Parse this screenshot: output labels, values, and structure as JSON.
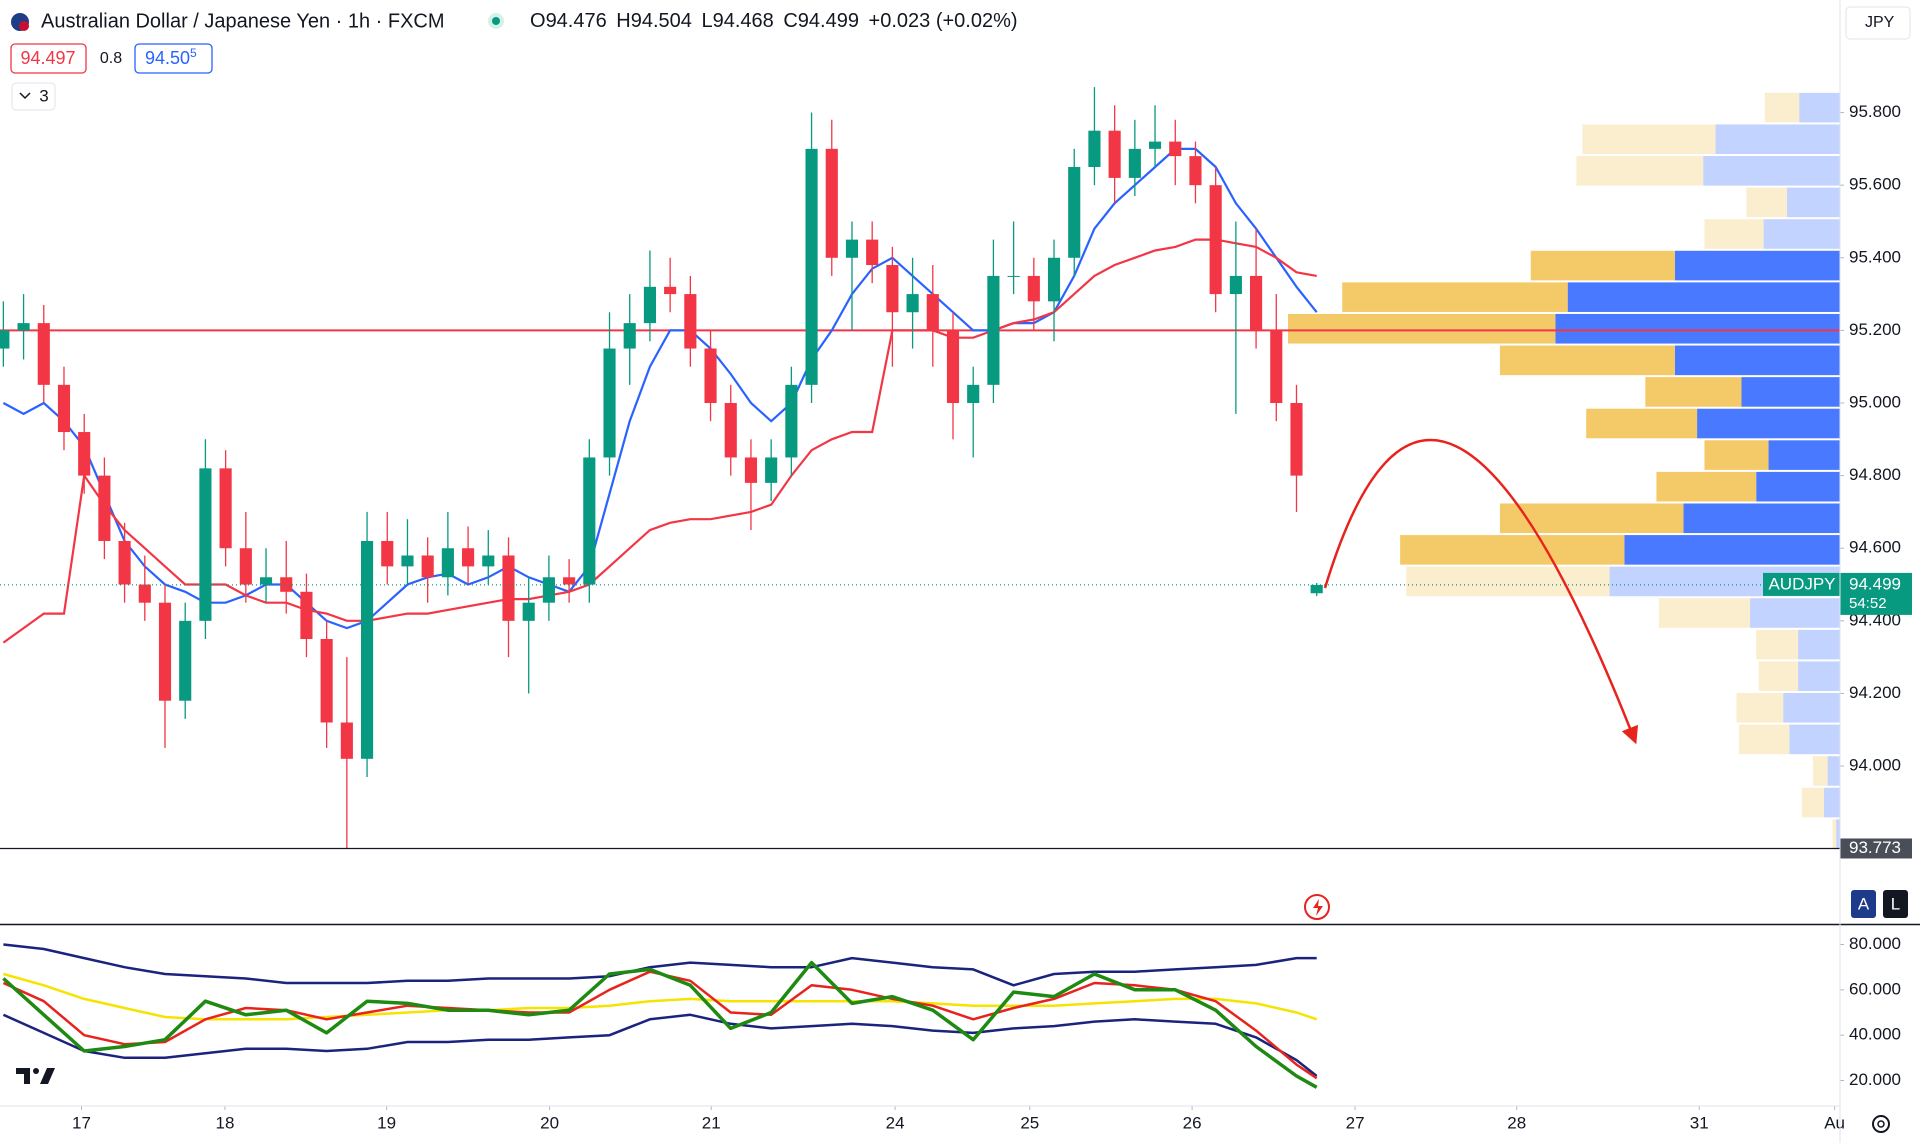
{
  "header": {
    "ohlc": [
      {
        "label": "O",
        "value": "94.476"
      },
      {
        "label": "H",
        "value": "94.504"
      },
      {
        "label": "L",
        "value": "94.468"
      },
      {
        "label": "C",
        "value": "94.499"
      }
    ],
    "change": "+0.023 (+0.02%)",
    "bid": "94.497",
    "spread": "0.8",
    "ask": "94.50",
    "ask_pip": "5",
    "indicators": "3",
    "currency": "JPY",
    "auto": "A",
    "log": "L"
  },
  "chart_data": [
    {
      "type": "candlestick",
      "title": "Australian Dollar / Japanese Yen · 1h · FXCM",
      "x": [
        0,
        3,
        6,
        9,
        12,
        15,
        18,
        21,
        24,
        27,
        30,
        33,
        36,
        39,
        42,
        45,
        48,
        51,
        54,
        57,
        60,
        63,
        66,
        69,
        72,
        75,
        78,
        81,
        84,
        87,
        90,
        93,
        96,
        99,
        102,
        105,
        108,
        111,
        114,
        117,
        120,
        123,
        126,
        129,
        132,
        135,
        138,
        141,
        144,
        147,
        150,
        153,
        156,
        159,
        162,
        165,
        168,
        171,
        174,
        177,
        180,
        183,
        186,
        189,
        192,
        195
      ],
      "open": [
        95.15,
        95.2,
        95.22,
        95.05,
        94.92,
        94.8,
        94.62,
        94.5,
        94.45,
        94.18,
        94.4,
        94.82,
        94.6,
        94.5,
        94.52,
        94.48,
        94.35,
        94.12,
        94.02,
        94.62,
        94.55,
        94.58,
        94.52,
        94.6,
        94.55,
        94.58,
        94.4,
        94.45,
        94.52,
        94.5,
        94.85,
        95.15,
        95.22,
        95.32,
        95.3,
        95.15,
        95.0,
        94.85,
        94.78,
        94.85,
        95.05,
        95.7,
        95.4,
        95.45,
        95.38,
        95.25,
        95.3,
        95.2,
        95.0,
        95.05,
        95.35,
        95.35,
        95.28,
        95.4,
        95.65,
        95.75,
        95.62,
        95.7,
        95.72,
        95.68,
        95.6,
        95.3,
        95.35,
        95.2,
        95.0,
        94.476
      ],
      "high": [
        95.28,
        95.3,
        95.27,
        95.1,
        94.97,
        94.85,
        94.67,
        94.58,
        94.5,
        94.45,
        94.9,
        94.87,
        94.7,
        94.6,
        94.62,
        94.53,
        94.4,
        94.3,
        94.7,
        94.7,
        94.68,
        94.63,
        94.7,
        94.66,
        94.65,
        94.63,
        94.52,
        94.58,
        94.57,
        94.9,
        95.25,
        95.3,
        95.42,
        95.4,
        95.35,
        95.2,
        95.05,
        94.9,
        94.9,
        95.1,
        95.8,
        95.78,
        95.5,
        95.5,
        95.43,
        95.4,
        95.38,
        95.25,
        95.1,
        95.45,
        95.5,
        95.4,
        95.45,
        95.7,
        95.87,
        95.82,
        95.78,
        95.82,
        95.78,
        95.72,
        95.65,
        95.5,
        95.48,
        95.3,
        95.05,
        94.504
      ],
      "low": [
        95.1,
        95.12,
        95.0,
        94.87,
        94.75,
        94.57,
        94.45,
        94.4,
        94.05,
        94.13,
        94.35,
        94.55,
        94.45,
        94.45,
        94.42,
        94.3,
        94.05,
        93.773,
        93.97,
        94.5,
        94.5,
        94.45,
        94.47,
        94.5,
        94.5,
        94.3,
        94.2,
        94.4,
        94.45,
        94.45,
        94.8,
        95.05,
        95.17,
        95.25,
        95.1,
        94.95,
        94.8,
        94.65,
        94.73,
        94.8,
        95.0,
        95.35,
        95.2,
        95.33,
        95.1,
        95.15,
        95.1,
        94.9,
        94.85,
        95.0,
        95.3,
        95.2,
        95.17,
        95.35,
        95.6,
        95.55,
        95.57,
        95.65,
        95.6,
        95.55,
        95.25,
        94.97,
        95.15,
        94.95,
        94.7,
        94.468
      ],
      "close": [
        95.2,
        95.22,
        95.05,
        94.92,
        94.8,
        94.62,
        94.5,
        94.45,
        94.18,
        94.4,
        94.82,
        94.6,
        94.5,
        94.52,
        94.48,
        94.35,
        94.12,
        94.02,
        94.62,
        94.55,
        94.58,
        94.52,
        94.6,
        94.55,
        94.58,
        94.4,
        94.45,
        94.52,
        94.5,
        94.85,
        95.15,
        95.22,
        95.32,
        95.3,
        95.15,
        95.0,
        94.85,
        94.78,
        94.85,
        95.05,
        95.7,
        95.4,
        95.45,
        95.38,
        95.25,
        95.3,
        95.2,
        95.0,
        95.05,
        95.35,
        95.35,
        95.28,
        95.4,
        95.65,
        95.75,
        95.62,
        95.7,
        95.72,
        95.68,
        95.6,
        95.3,
        95.35,
        95.2,
        95.0,
        94.8,
        94.499
      ],
      "up_color": "#089981",
      "down_color": "#f23645",
      "overlays": [
        {
          "color": "#2962ff",
          "values": [
            95.0,
            94.97,
            95.0,
            94.95,
            94.88,
            94.75,
            94.62,
            94.55,
            94.5,
            94.48,
            94.45,
            94.45,
            94.47,
            94.5,
            94.5,
            94.45,
            94.4,
            94.38,
            94.4,
            94.45,
            94.5,
            94.52,
            94.53,
            94.5,
            94.52,
            94.55,
            94.52,
            94.5,
            94.48,
            94.55,
            94.75,
            94.95,
            95.1,
            95.2,
            95.2,
            95.15,
            95.08,
            95.0,
            94.95,
            95.0,
            95.12,
            95.2,
            95.3,
            95.37,
            95.4,
            95.35,
            95.3,
            95.25,
            95.2,
            95.2,
            95.22,
            95.22,
            95.25,
            95.35,
            95.48,
            95.55,
            95.6,
            95.65,
            95.7,
            95.7,
            95.65,
            95.55,
            95.48,
            95.4,
            95.32,
            95.25
          ]
        },
        {
          "color": "#f23645",
          "values": [
            94.34,
            94.38,
            94.42,
            94.42,
            94.8,
            94.72,
            94.65,
            94.6,
            94.55,
            94.5,
            94.5,
            94.5,
            94.47,
            94.45,
            94.45,
            94.43,
            94.42,
            94.4,
            94.4,
            94.41,
            94.42,
            94.42,
            94.43,
            94.44,
            94.45,
            94.46,
            94.46,
            94.47,
            94.48,
            94.5,
            94.55,
            94.6,
            94.65,
            94.67,
            94.68,
            94.68,
            94.69,
            94.7,
            94.72,
            94.8,
            94.87,
            94.9,
            94.92,
            94.92,
            95.2,
            95.2,
            95.2,
            95.18,
            95.18,
            95.2,
            95.22,
            95.23,
            95.25,
            95.3,
            95.35,
            95.38,
            95.4,
            95.42,
            95.43,
            95.45,
            95.45,
            95.44,
            95.43,
            95.4,
            95.36,
            95.35
          ]
        }
      ],
      "hline": {
        "value": 95.2,
        "color": "#f23645"
      },
      "low_line": 93.773,
      "last_price": {
        "symbol": "AUDJPY",
        "value": 94.499,
        "countdown": "54:52",
        "color": "#089981"
      },
      "profile": {
        "top": 95.857,
        "row_size": 0.087,
        "up_color": "#2962ff",
        "down_color": "#f2c14e",
        "up": [
          33,
          101,
          111,
          43,
          62,
          134,
          221,
          231,
          134,
          80,
          116,
          58,
          68,
          127,
          175,
          187,
          73,
          34,
          34,
          46,
          41,
          10,
          13,
          3
        ],
        "down": [
          28,
          108,
          103,
          33,
          48,
          117,
          183,
          217,
          142,
          78,
          90,
          52,
          81,
          149,
          182,
          165,
          74,
          34,
          32,
          38,
          41,
          12,
          18,
          3
        ],
        "value_area": [
          false,
          false,
          false,
          false,
          false,
          true,
          true,
          true,
          true,
          true,
          true,
          true,
          true,
          true,
          true,
          false,
          false,
          false,
          false,
          false,
          false,
          false,
          false,
          false
        ]
      },
      "xlim": [
        -0.5,
        272.7
      ],
      "ylim": [
        93.565,
        96.11
      ],
      "xticks": [
        {
          "value": 11.6,
          "label": "17"
        },
        {
          "value": 32.9,
          "label": "18"
        },
        {
          "value": 56.9,
          "label": "19"
        },
        {
          "value": 81.1,
          "label": "20"
        },
        {
          "value": 105.1,
          "label": "21"
        },
        {
          "value": 132.4,
          "label": "24"
        },
        {
          "value": 152.4,
          "label": "25"
        },
        {
          "value": 176.5,
          "label": "26"
        },
        {
          "value": 200.7,
          "label": "27"
        },
        {
          "value": 224.7,
          "label": "28"
        },
        {
          "value": 251.8,
          "label": "31"
        },
        {
          "value": 271.9,
          "label": "Au"
        }
      ],
      "yticks": [
        {
          "value": 94.0,
          "label": "94.000"
        },
        {
          "value": 94.2,
          "label": "94.200"
        },
        {
          "value": 94.4,
          "label": "94.400"
        },
        {
          "value": 94.6,
          "label": "94.600"
        },
        {
          "value": 94.8,
          "label": "94.800"
        },
        {
          "value": 95.0,
          "label": "95.000"
        },
        {
          "value": 95.2,
          "label": "95.200"
        },
        {
          "value": 95.4,
          "label": "95.400"
        },
        {
          "value": 95.6,
          "label": "95.600"
        },
        {
          "value": 95.8,
          "label": "95.800"
        }
      ]
    },
    {
      "type": "line",
      "x": [
        0,
        6,
        12,
        18,
        24,
        30,
        36,
        42,
        48,
        54,
        60,
        66,
        72,
        78,
        84,
        90,
        96,
        102,
        108,
        114,
        120,
        126,
        132,
        138,
        144,
        150,
        156,
        162,
        168,
        174,
        180,
        186,
        192,
        195
      ],
      "series": [
        {
          "color": "#1a237e",
          "line_width": 2.5,
          "values": [
            80,
            78,
            74,
            70,
            67,
            66,
            65,
            63,
            63,
            63,
            64,
            64,
            65,
            65,
            65,
            66,
            70,
            72,
            71,
            70,
            70,
            74,
            72,
            70,
            69,
            62,
            67,
            68,
            68,
            69,
            70,
            71,
            74,
            74
          ]
        },
        {
          "color": "#1a237e",
          "line_width": 2.5,
          "values": [
            49,
            41,
            33,
            30,
            30,
            32,
            34,
            34,
            33,
            34,
            37,
            37,
            38,
            38,
            39,
            40,
            47,
            49,
            45,
            43,
            44,
            45,
            44,
            42,
            41,
            43,
            44,
            46,
            47,
            46,
            45,
            39,
            29,
            22
          ]
        },
        {
          "color": "#f5e400",
          "line_width": 2.5,
          "values": [
            67,
            62,
            56,
            52,
            48,
            47,
            47,
            47,
            48,
            49,
            50,
            51,
            51,
            52,
            52,
            53,
            55,
            56,
            55,
            55,
            55,
            55,
            55,
            54,
            53,
            53,
            53,
            54,
            55,
            56,
            56,
            54,
            50,
            47
          ]
        },
        {
          "color": "#e8231d",
          "line_width": 2.5,
          "values": [
            63,
            55,
            40,
            36,
            37,
            47,
            52,
            51,
            47,
            50,
            53,
            52,
            51,
            50,
            50,
            60,
            68,
            64,
            50,
            49,
            62,
            60,
            56,
            53,
            47,
            52,
            56,
            63,
            62,
            60,
            55,
            42,
            27,
            21
          ]
        },
        {
          "color": "#1f8a12",
          "line_width": 3.5,
          "values": [
            65,
            49,
            33,
            35,
            38,
            55,
            49,
            51,
            41,
            55,
            54,
            51,
            51,
            49,
            51,
            67,
            69,
            62,
            43,
            50,
            72,
            54,
            57,
            51,
            38,
            59,
            57,
            67,
            60,
            60,
            51,
            35,
            22,
            17
          ]
        }
      ],
      "xlim": [
        -0.5,
        272.7
      ],
      "ylim": [
        9.2,
        88.6
      ],
      "yticks": [
        {
          "value": 20,
          "label": "20.000"
        },
        {
          "value": 40,
          "label": "40.000"
        },
        {
          "value": 60,
          "label": "60.000"
        },
        {
          "value": 80,
          "label": "80.000"
        }
      ]
    }
  ]
}
